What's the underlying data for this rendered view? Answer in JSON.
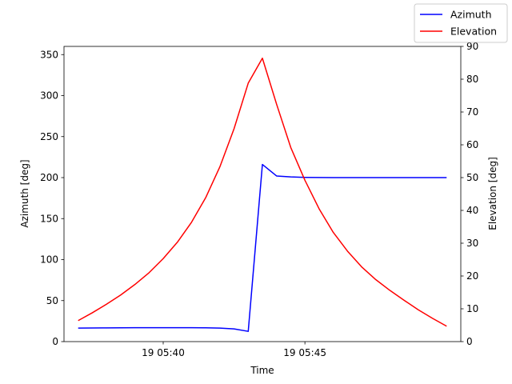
{
  "chart_data": {
    "type": "line",
    "xlabel": "Time",
    "ylabel_left": "Azimuth [deg]",
    "ylabel_right": "Elevation [deg]",
    "xlim": [
      36.5,
      50.5
    ],
    "x_ticks": [
      {
        "value": 40,
        "label": "19 05:40"
      },
      {
        "value": 45,
        "label": "19 05:45"
      }
    ],
    "ylim_left": [
      0,
      360
    ],
    "yticks_left": [
      0,
      50,
      100,
      150,
      200,
      250,
      300,
      350
    ],
    "ylim_right": [
      0,
      90
    ],
    "yticks_right": [
      0,
      10,
      20,
      30,
      40,
      50,
      60,
      70,
      80,
      90
    ],
    "x_unit": "minutes past 05:00 on day 19",
    "legend_position": "top-right",
    "grid": false,
    "series": [
      {
        "name": "Azimuth",
        "color": "#0000ff",
        "axis": "left",
        "x": [
          37.0,
          38.0,
          39.0,
          40.0,
          41.0,
          41.5,
          42.0,
          42.5,
          43.0,
          43.5,
          44.0,
          44.5,
          45.0,
          46.0,
          47.0,
          48.0,
          49.0,
          50.0
        ],
        "y": [
          16.5,
          16.7,
          16.9,
          17.0,
          17.0,
          16.8,
          16.5,
          15.5,
          12.5,
          216.0,
          202.0,
          200.8,
          200.3,
          200.0,
          200.0,
          200.0,
          200.0,
          200.0
        ]
      },
      {
        "name": "Elevation",
        "color": "#ff0000",
        "axis": "right",
        "x": [
          37.0,
          37.5,
          38.0,
          38.5,
          39.0,
          39.5,
          40.0,
          40.5,
          41.0,
          41.5,
          42.0,
          42.5,
          43.0,
          43.5,
          44.0,
          44.5,
          45.0,
          45.5,
          46.0,
          46.5,
          47.0,
          47.5,
          48.0,
          48.5,
          49.0,
          49.5,
          50.0
        ],
        "y": [
          6.4,
          8.8,
          11.4,
          14.2,
          17.4,
          21.0,
          25.3,
          30.3,
          36.4,
          43.9,
          53.3,
          64.9,
          78.8,
          86.4,
          72.4,
          59.2,
          49.2,
          40.5,
          33.3,
          27.6,
          22.8,
          18.9,
          15.6,
          12.6,
          9.7,
          7.1,
          4.7
        ]
      }
    ]
  }
}
